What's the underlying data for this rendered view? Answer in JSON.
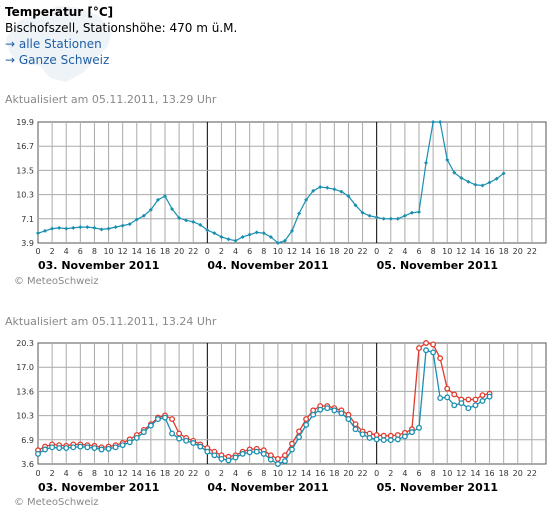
{
  "header": {
    "title": "Temperatur [°C]",
    "station": "Bischofszell, Stationshöhe: 470 m ü.M.",
    "links": [
      "→ alle Stationen",
      "→ Ganze Schweiz"
    ]
  },
  "colors": {
    "blue": "#1a8fb0",
    "red": "#e03a2e",
    "grid": "#aaaaaa",
    "link": "#1f5fa6"
  },
  "chart_data": [
    {
      "type": "line",
      "updated": "Aktualisiert am 05.11.2011, 13.29 Uhr",
      "credit": "MeteoSchweiz",
      "y_ticks": [
        "19.9",
        "16.7",
        "13.5",
        "10.3",
        "7.1",
        "3.9"
      ],
      "ylim": [
        3.9,
        19.9
      ],
      "hour_ticks": [
        "0",
        "2",
        "4",
        "6",
        "8",
        "10",
        "12",
        "14",
        "16",
        "18",
        "20",
        "22"
      ],
      "day_labels": [
        "03. November 2011",
        "04. November 2011",
        "05. November 2011"
      ],
      "series": [
        {
          "color": "blue",
          "values": [
            5.2,
            5.5,
            5.8,
            5.9,
            5.8,
            5.9,
            6.0,
            6.0,
            5.9,
            5.7,
            5.8,
            6.0,
            6.2,
            6.4,
            7.0,
            7.5,
            8.3,
            9.6,
            10.1,
            8.4,
            7.2,
            6.9,
            6.7,
            6.3,
            5.6,
            5.2,
            4.7,
            4.4,
            4.2,
            4.7,
            5.0,
            5.3,
            5.2,
            4.7,
            3.9,
            4.2,
            5.5,
            7.8,
            9.6,
            10.8,
            11.3,
            11.2,
            11.0,
            10.7,
            10.1,
            8.9,
            7.9,
            7.5,
            7.3,
            7.1,
            7.1,
            7.1,
            7.5,
            7.9,
            8.0,
            14.5,
            19.9,
            19.9,
            14.9,
            13.2,
            12.5,
            12.0,
            11.6,
            11.5,
            11.9,
            12.4,
            13.1
          ]
        }
      ]
    },
    {
      "type": "line",
      "updated": "Aktualisiert am 05.11.2011, 13.24 Uhr",
      "credit": "MeteoSchweiz",
      "y_ticks": [
        "20.3",
        "17.0",
        "13.6",
        "10.3",
        "6.9",
        "3.6"
      ],
      "ylim": [
        3.6,
        20.3
      ],
      "hour_ticks": [
        "0",
        "2",
        "4",
        "6",
        "8",
        "10",
        "12",
        "14",
        "16",
        "18",
        "20",
        "22"
      ],
      "day_labels": [
        "03. November 2011",
        "04. November 2011",
        "05. November 2011"
      ],
      "series": [
        {
          "color": "red",
          "values": [
            5.5,
            6.0,
            6.3,
            6.2,
            6.1,
            6.3,
            6.3,
            6.2,
            6.1,
            5.9,
            6.0,
            6.2,
            6.5,
            7.0,
            7.6,
            8.3,
            9.1,
            10.0,
            10.3,
            9.8,
            7.8,
            7.2,
            6.8,
            6.3,
            5.8,
            5.3,
            4.8,
            4.6,
            4.8,
            5.3,
            5.6,
            5.7,
            5.5,
            4.8,
            4.3,
            4.8,
            6.4,
            8.1,
            9.8,
            11.0,
            11.6,
            11.6,
            11.3,
            11.0,
            10.4,
            9.1,
            8.1,
            7.8,
            7.6,
            7.5,
            7.5,
            7.6,
            7.9,
            8.4,
            19.6,
            20.3,
            20.1,
            18.2,
            14.0,
            13.2,
            12.5,
            12.5,
            12.5,
            13.1,
            13.3
          ]
        },
        {
          "color": "blue",
          "values": [
            5.0,
            5.6,
            5.9,
            5.8,
            5.8,
            5.9,
            6.0,
            5.9,
            5.8,
            5.6,
            5.7,
            5.9,
            6.2,
            6.6,
            7.2,
            8.0,
            8.9,
            9.8,
            10.0,
            7.8,
            7.1,
            6.8,
            6.5,
            6.0,
            5.3,
            4.8,
            4.3,
            4.1,
            4.5,
            5.0,
            5.2,
            5.3,
            5.0,
            4.2,
            3.6,
            4.0,
            5.6,
            7.3,
            9.0,
            10.4,
            11.1,
            11.3,
            11.0,
            10.6,
            9.8,
            8.4,
            7.7,
            7.2,
            7.0,
            6.9,
            6.9,
            7.0,
            7.4,
            8.0,
            8.6,
            19.3,
            19.0,
            12.7,
            12.8,
            11.7,
            12.0,
            11.3,
            11.7,
            12.3,
            12.9
          ]
        }
      ]
    }
  ]
}
